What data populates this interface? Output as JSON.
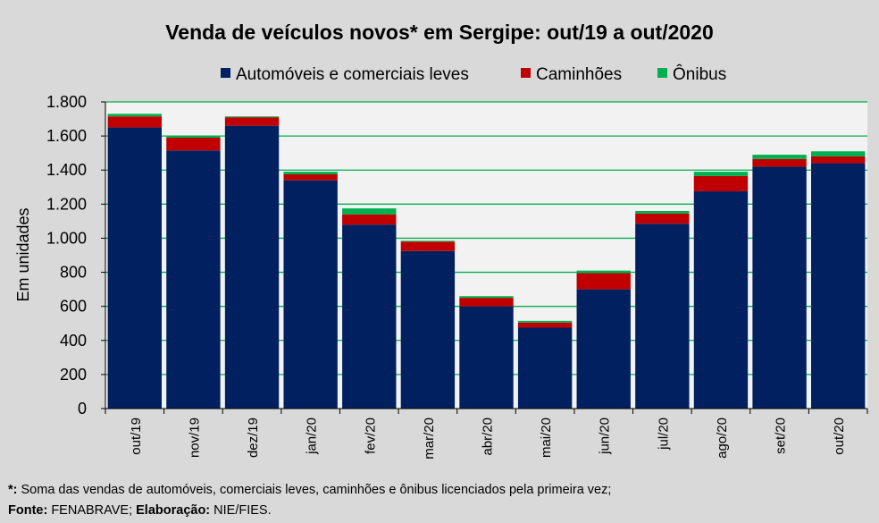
{
  "chart_data": {
    "type": "bar",
    "stacked": true,
    "title": "Venda de veículos novos* em Sergipe: out/19 a out/2020",
    "xlabel": "",
    "ylabel": "Em unidades",
    "ylim": [
      0,
      1800
    ],
    "yticks": [
      0,
      200,
      400,
      600,
      800,
      1000,
      1200,
      1400,
      1600,
      1800
    ],
    "ytick_labels": [
      "0",
      "200",
      "400",
      "600",
      "800",
      "1.000",
      "1.200",
      "1.400",
      "1.600",
      "1.800"
    ],
    "grid": true,
    "legend_position": "top",
    "categories": [
      "out/19",
      "nov/19",
      "dez/19",
      "jan/20",
      "fev/20",
      "mar/20",
      "abr/20",
      "mai/20",
      "jun/20",
      "jul/20",
      "ago/20",
      "set/20",
      "out/20"
    ],
    "series": [
      {
        "name": "Automóveis e comerciais leves",
        "color": "#002060",
        "values": [
          1650,
          1515,
          1660,
          1340,
          1080,
          925,
          600,
          475,
          700,
          1085,
          1275,
          1420,
          1440
        ]
      },
      {
        "name": "Caminhões",
        "color": "#c00000",
        "values": [
          65,
          75,
          50,
          35,
          60,
          55,
          50,
          30,
          95,
          60,
          90,
          45,
          40
        ]
      },
      {
        "name": "Ônibus",
        "color": "#00b050",
        "values": [
          15,
          10,
          5,
          15,
          35,
          5,
          10,
          10,
          15,
          15,
          25,
          25,
          30
        ]
      }
    ]
  },
  "footnotes": {
    "note_marker": "*:",
    "note_text": " Soma das vendas de automóveis, comerciais leves, caminhões e ônibus licenciados pela primeira vez;",
    "source_label": "Fonte:",
    "source_value": " FENABRAVE; ",
    "elab_label": "Elaboração:",
    "elab_value": " NIE/FIES."
  },
  "colors": {
    "background": "#d9d9d9",
    "plot_background": "#f2f2f2",
    "gridline": "#00b050"
  }
}
